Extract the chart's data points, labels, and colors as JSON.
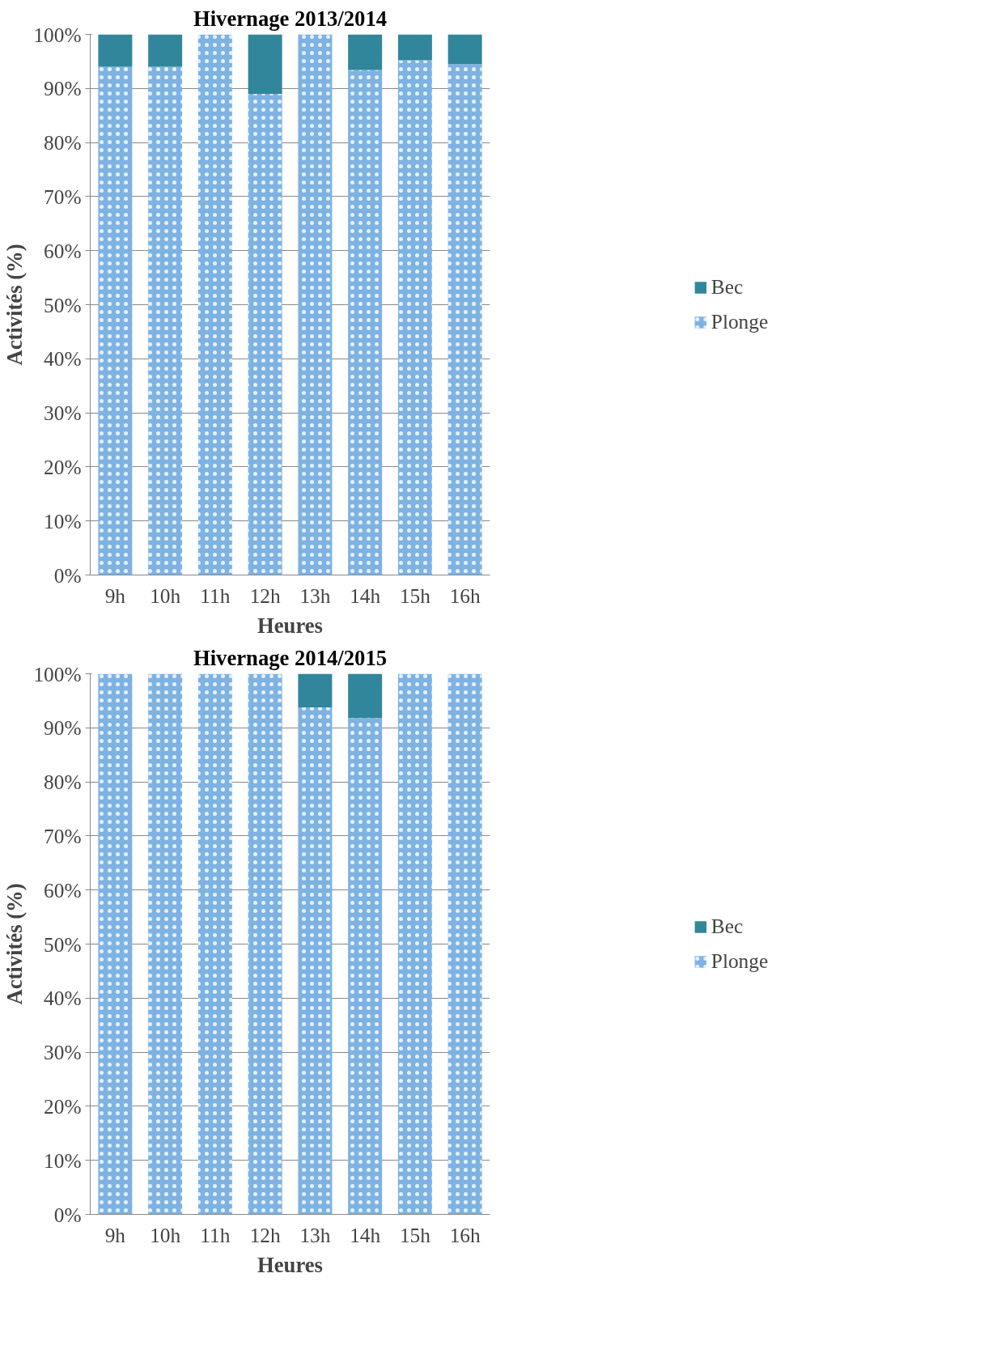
{
  "chart_data": [
    {
      "type": "bar",
      "title": "Hivernage 2013/2014",
      "xlabel": "Heures",
      "ylabel": "Activités (%)",
      "categories": [
        "9h",
        "10h",
        "11h",
        "12h",
        "13h",
        "14h",
        "15h",
        "16h"
      ],
      "stacked": true,
      "grid": "y",
      "legend": "right",
      "series": [
        {
          "name": "Plonge",
          "color": "#7eb2e3",
          "values": [
            94,
            94,
            100,
            89,
            100,
            93.4,
            95.2,
            94.5
          ]
        },
        {
          "name": "Bec",
          "color": "#31869b",
          "values": [
            6,
            6,
            0,
            11,
            0,
            6.6,
            4.8,
            5.5
          ]
        }
      ],
      "ylim": [
        0,
        100
      ],
      "yticks": [
        {
          "value": 0,
          "label": "0%"
        },
        {
          "value": 10,
          "label": "10%"
        },
        {
          "value": 20,
          "label": "20%"
        },
        {
          "value": 30,
          "label": "30%"
        },
        {
          "value": 40,
          "label": "40%"
        },
        {
          "value": 50,
          "label": "50%"
        },
        {
          "value": 60,
          "label": "60%"
        },
        {
          "value": 70,
          "label": "70%"
        },
        {
          "value": 80,
          "label": "80%"
        },
        {
          "value": 90,
          "label": "90%"
        },
        {
          "value": 100,
          "label": "100%"
        }
      ]
    },
    {
      "type": "bar",
      "title": "Hivernage 2014/2015",
      "xlabel": "Heures",
      "ylabel": "Activités (%)",
      "categories": [
        "9h",
        "10h",
        "11h",
        "12h",
        "13h",
        "14h",
        "15h",
        "16h"
      ],
      "stacked": true,
      "grid": "y",
      "legend": "right",
      "series": [
        {
          "name": "Plonge",
          "color": "#7eb2e3",
          "values": [
            100,
            100,
            100,
            100,
            93.8,
            91.8,
            100,
            100
          ]
        },
        {
          "name": "Bec",
          "color": "#31869b",
          "values": [
            0,
            0,
            0,
            0,
            6.2,
            8.2,
            0,
            0
          ]
        }
      ],
      "ylim": [
        0,
        100
      ],
      "yticks": [
        {
          "value": 0,
          "label": "0%"
        },
        {
          "value": 10,
          "label": "10%"
        },
        {
          "value": 20,
          "label": "20%"
        },
        {
          "value": 30,
          "label": "30%"
        },
        {
          "value": 40,
          "label": "40%"
        },
        {
          "value": 50,
          "label": "50%"
        },
        {
          "value": 60,
          "label": "60%"
        },
        {
          "value": 70,
          "label": "70%"
        },
        {
          "value": 80,
          "label": "80%"
        },
        {
          "value": 90,
          "label": "90%"
        },
        {
          "value": 100,
          "label": "100%"
        }
      ]
    }
  ]
}
